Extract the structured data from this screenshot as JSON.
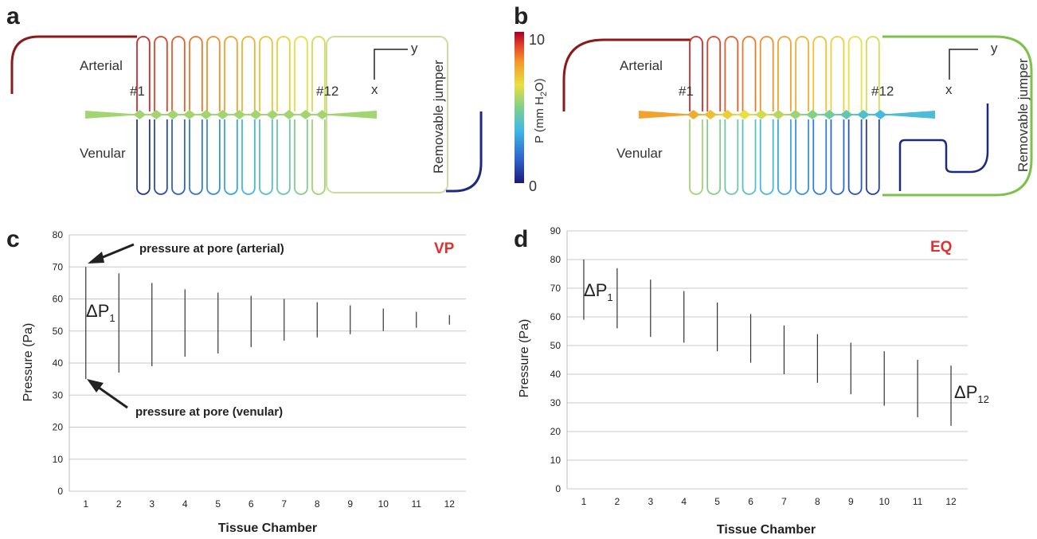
{
  "panel_labels": {
    "a": "a",
    "b": "b",
    "c": "c",
    "d": "d"
  },
  "diagram_a": {
    "arterial": "Arterial",
    "venular": "Venular",
    "first": "#1",
    "last": "#12",
    "axis_x": "x",
    "axis_y": "y",
    "jumper": "Removable jumper"
  },
  "diagram_b": {
    "arterial": "Arterial",
    "venular": "Venular",
    "first": "#1",
    "last": "#12",
    "axis_x": "x",
    "axis_y": "y",
    "jumper": "Removable jumper"
  },
  "colorbar": {
    "max": "10",
    "min": "0",
    "label": "P (mm H2O)",
    "label_main": "P (mm H",
    "label_sub": "2",
    "label_end": "O)"
  },
  "colors": {
    "high": "#a50026",
    "low": "#1a1a7a",
    "grid": "#c8c8c8",
    "tag": "#e03030"
  },
  "chart_data": [
    {
      "type": "range-bar",
      "tag": "VP",
      "xlabel": "Tissue Chamber",
      "ylabel": "Pressure (Pa)",
      "ylim": [
        0,
        80
      ],
      "yticks": [
        0,
        10,
        20,
        30,
        40,
        50,
        60,
        70,
        80
      ],
      "categories": [
        "1",
        "2",
        "3",
        "4",
        "5",
        "6",
        "7",
        "8",
        "9",
        "10",
        "11",
        "12"
      ],
      "low": [
        35,
        37,
        39,
        42,
        43,
        45,
        47,
        48,
        49,
        50,
        51,
        52
      ],
      "high": [
        70,
        68,
        65,
        63,
        62,
        61,
        60,
        59,
        58,
        57,
        56,
        55
      ],
      "annotations": {
        "arterial": "pressure at pore (arterial)",
        "venular": "pressure at pore (venular)",
        "delta_main": "ΔP",
        "delta_sub": "1"
      },
      "grid": true
    },
    {
      "type": "range-bar",
      "tag": "EQ",
      "xlabel": "Tissue Chamber",
      "ylabel": "Pressure (Pa)",
      "ylim": [
        0,
        90
      ],
      "yticks": [
        0,
        10,
        20,
        30,
        40,
        50,
        60,
        70,
        80,
        90
      ],
      "categories": [
        "1",
        "2",
        "3",
        "4",
        "5",
        "6",
        "7",
        "8",
        "9",
        "10",
        "11",
        "12"
      ],
      "low": [
        59,
        56,
        53,
        51,
        48,
        44,
        40,
        37,
        33,
        29,
        25,
        22
      ],
      "high": [
        80,
        77,
        73,
        69,
        65,
        61,
        57,
        54,
        51,
        48,
        45,
        43
      ],
      "annotations": {
        "delta1_main": "ΔP",
        "delta1_sub": "1",
        "delta12_main": "ΔP",
        "delta12_sub": "12"
      },
      "grid": true
    }
  ]
}
